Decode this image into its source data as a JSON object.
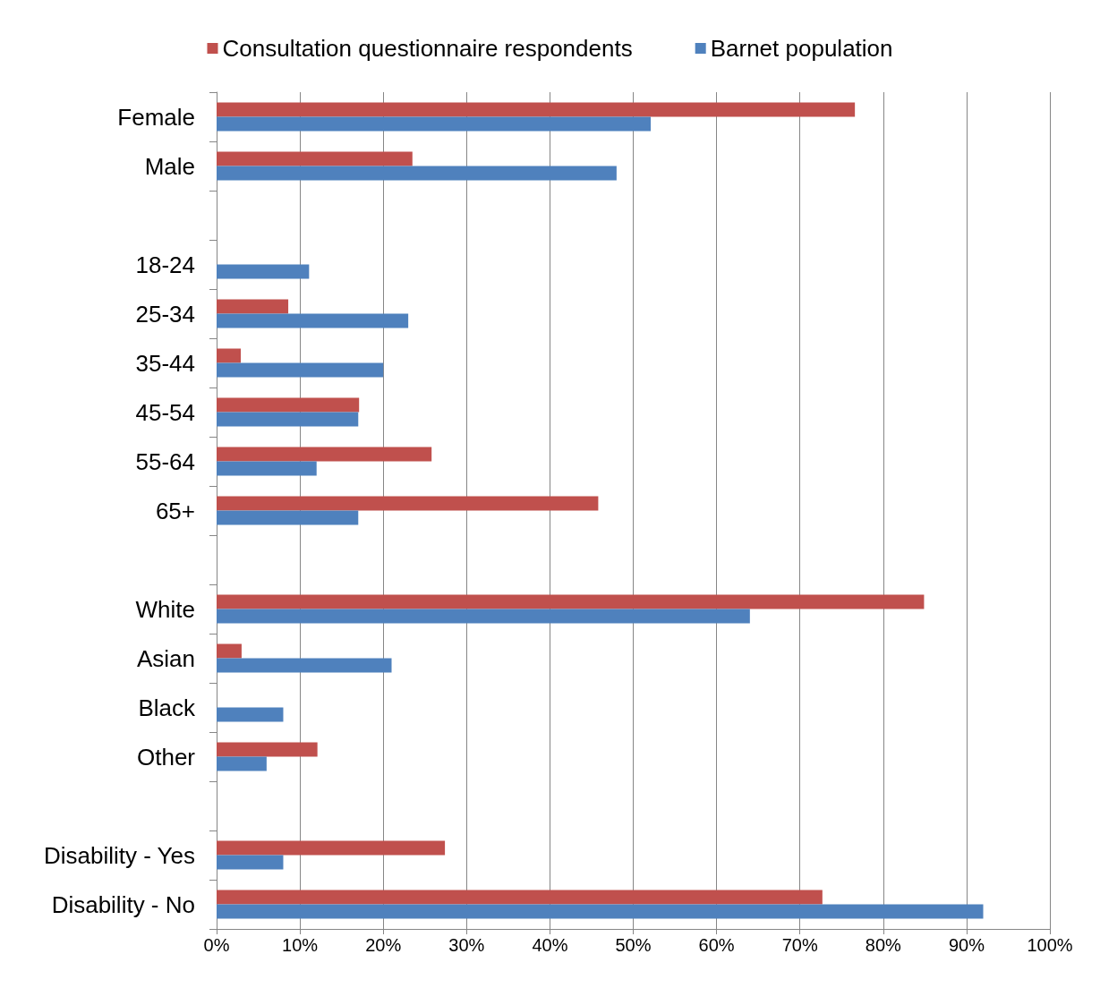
{
  "chart_data": {
    "type": "bar",
    "orientation": "horizontal",
    "categories": [
      "Female",
      "Male",
      null,
      "18-24",
      "25-34",
      "35-44",
      "45-54",
      "55-64",
      "65+",
      null,
      "White",
      "Asian",
      "Black",
      "Other",
      null,
      "Disability - Yes",
      "Disability - No"
    ],
    "series": [
      {
        "name": "Consultation questionnaire respondents",
        "color": "#c0504d",
        "values": [
          76.6,
          23.5,
          null,
          null,
          8.6,
          2.9,
          17.1,
          25.8,
          45.8,
          null,
          84.9,
          3.0,
          null,
          12.1,
          null,
          27.4,
          72.7
        ]
      },
      {
        "name": "Barnet population",
        "color": "#4f81bd",
        "values": [
          52.1,
          48.0,
          null,
          11.1,
          23.0,
          20.0,
          17.0,
          12.0,
          17.0,
          null,
          64.0,
          21.0,
          8.0,
          6.0,
          null,
          8.0,
          92.0
        ]
      }
    ],
    "xlim": [
      0,
      100
    ],
    "xticks": [
      {
        "value": 0,
        "label": "0%"
      },
      {
        "value": 10,
        "label": "10%"
      },
      {
        "value": 20,
        "label": "20%"
      },
      {
        "value": 30,
        "label": "30%"
      },
      {
        "value": 40,
        "label": "40%"
      },
      {
        "value": 50,
        "label": "50%"
      },
      {
        "value": 60,
        "label": "60%"
      },
      {
        "value": 70,
        "label": "70%"
      },
      {
        "value": 80,
        "label": "80%"
      },
      {
        "value": 90,
        "label": "90%"
      },
      {
        "value": 100,
        "label": "100%"
      }
    ],
    "grid": "x",
    "legend": "top"
  }
}
